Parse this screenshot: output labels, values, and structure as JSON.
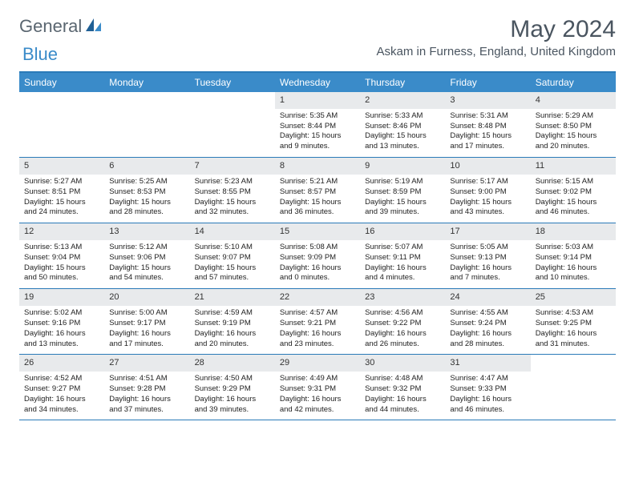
{
  "logo": {
    "part1": "General",
    "part2": "Blue"
  },
  "title": "May 2024",
  "location": "Askam in Furness, England, United Kingdom",
  "header_bg": "#3a8bc9",
  "border_color": "#2a7ab8",
  "daynum_bg": "#e8eaec",
  "weekdays": [
    "Sunday",
    "Monday",
    "Tuesday",
    "Wednesday",
    "Thursday",
    "Friday",
    "Saturday"
  ],
  "weeks": [
    [
      null,
      null,
      null,
      {
        "n": "1",
        "sr": "5:35 AM",
        "ss": "8:44 PM",
        "dl": "15 hours and 9 minutes."
      },
      {
        "n": "2",
        "sr": "5:33 AM",
        "ss": "8:46 PM",
        "dl": "15 hours and 13 minutes."
      },
      {
        "n": "3",
        "sr": "5:31 AM",
        "ss": "8:48 PM",
        "dl": "15 hours and 17 minutes."
      },
      {
        "n": "4",
        "sr": "5:29 AM",
        "ss": "8:50 PM",
        "dl": "15 hours and 20 minutes."
      }
    ],
    [
      {
        "n": "5",
        "sr": "5:27 AM",
        "ss": "8:51 PM",
        "dl": "15 hours and 24 minutes."
      },
      {
        "n": "6",
        "sr": "5:25 AM",
        "ss": "8:53 PM",
        "dl": "15 hours and 28 minutes."
      },
      {
        "n": "7",
        "sr": "5:23 AM",
        "ss": "8:55 PM",
        "dl": "15 hours and 32 minutes."
      },
      {
        "n": "8",
        "sr": "5:21 AM",
        "ss": "8:57 PM",
        "dl": "15 hours and 36 minutes."
      },
      {
        "n": "9",
        "sr": "5:19 AM",
        "ss": "8:59 PM",
        "dl": "15 hours and 39 minutes."
      },
      {
        "n": "10",
        "sr": "5:17 AM",
        "ss": "9:00 PM",
        "dl": "15 hours and 43 minutes."
      },
      {
        "n": "11",
        "sr": "5:15 AM",
        "ss": "9:02 PM",
        "dl": "15 hours and 46 minutes."
      }
    ],
    [
      {
        "n": "12",
        "sr": "5:13 AM",
        "ss": "9:04 PM",
        "dl": "15 hours and 50 minutes."
      },
      {
        "n": "13",
        "sr": "5:12 AM",
        "ss": "9:06 PM",
        "dl": "15 hours and 54 minutes."
      },
      {
        "n": "14",
        "sr": "5:10 AM",
        "ss": "9:07 PM",
        "dl": "15 hours and 57 minutes."
      },
      {
        "n": "15",
        "sr": "5:08 AM",
        "ss": "9:09 PM",
        "dl": "16 hours and 0 minutes."
      },
      {
        "n": "16",
        "sr": "5:07 AM",
        "ss": "9:11 PM",
        "dl": "16 hours and 4 minutes."
      },
      {
        "n": "17",
        "sr": "5:05 AM",
        "ss": "9:13 PM",
        "dl": "16 hours and 7 minutes."
      },
      {
        "n": "18",
        "sr": "5:03 AM",
        "ss": "9:14 PM",
        "dl": "16 hours and 10 minutes."
      }
    ],
    [
      {
        "n": "19",
        "sr": "5:02 AM",
        "ss": "9:16 PM",
        "dl": "16 hours and 13 minutes."
      },
      {
        "n": "20",
        "sr": "5:00 AM",
        "ss": "9:17 PM",
        "dl": "16 hours and 17 minutes."
      },
      {
        "n": "21",
        "sr": "4:59 AM",
        "ss": "9:19 PM",
        "dl": "16 hours and 20 minutes."
      },
      {
        "n": "22",
        "sr": "4:57 AM",
        "ss": "9:21 PM",
        "dl": "16 hours and 23 minutes."
      },
      {
        "n": "23",
        "sr": "4:56 AM",
        "ss": "9:22 PM",
        "dl": "16 hours and 26 minutes."
      },
      {
        "n": "24",
        "sr": "4:55 AM",
        "ss": "9:24 PM",
        "dl": "16 hours and 28 minutes."
      },
      {
        "n": "25",
        "sr": "4:53 AM",
        "ss": "9:25 PM",
        "dl": "16 hours and 31 minutes."
      }
    ],
    [
      {
        "n": "26",
        "sr": "4:52 AM",
        "ss": "9:27 PM",
        "dl": "16 hours and 34 minutes."
      },
      {
        "n": "27",
        "sr": "4:51 AM",
        "ss": "9:28 PM",
        "dl": "16 hours and 37 minutes."
      },
      {
        "n": "28",
        "sr": "4:50 AM",
        "ss": "9:29 PM",
        "dl": "16 hours and 39 minutes."
      },
      {
        "n": "29",
        "sr": "4:49 AM",
        "ss": "9:31 PM",
        "dl": "16 hours and 42 minutes."
      },
      {
        "n": "30",
        "sr": "4:48 AM",
        "ss": "9:32 PM",
        "dl": "16 hours and 44 minutes."
      },
      {
        "n": "31",
        "sr": "4:47 AM",
        "ss": "9:33 PM",
        "dl": "16 hours and 46 minutes."
      },
      null
    ]
  ],
  "labels": {
    "sunrise": "Sunrise:",
    "sunset": "Sunset:",
    "daylight": "Daylight:"
  }
}
